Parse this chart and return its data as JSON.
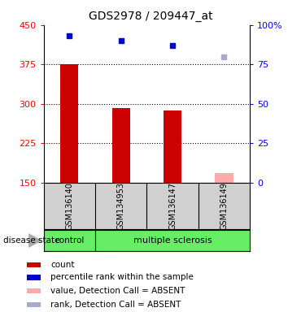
{
  "title": "GDS2978 / 209447_at",
  "samples": [
    "GSM136140",
    "GSM134953",
    "GSM136147",
    "GSM136149"
  ],
  "bar_values": [
    375,
    292,
    287,
    null
  ],
  "bar_values_absent": [
    null,
    null,
    null,
    168
  ],
  "rank_right": [
    93,
    90,
    87,
    null
  ],
  "rank_right_absent": [
    null,
    null,
    null,
    80
  ],
  "bar_color": "#cc0000",
  "bar_absent_color": "#ffaaaa",
  "rank_color": "#0000cc",
  "rank_absent_color": "#aaaacc",
  "ylim_left": [
    150,
    450
  ],
  "ylim_right": [
    0,
    100
  ],
  "yticks_left": [
    150,
    225,
    300,
    375,
    450
  ],
  "yticks_right": [
    0,
    25,
    50,
    75,
    100
  ],
  "ytick_labels_right": [
    "0",
    "25",
    "50",
    "75",
    "100%"
  ],
  "legend_items": [
    {
      "label": "count",
      "color": "#cc0000"
    },
    {
      "label": "percentile rank within the sample",
      "color": "#0000cc"
    },
    {
      "label": "value, Detection Call = ABSENT",
      "color": "#ffaaaa"
    },
    {
      "label": "rank, Detection Call = ABSENT",
      "color": "#aaaacc"
    }
  ],
  "bar_width": 0.35,
  "background_color": "#ffffff",
  "grid_color": "#000000",
  "label_bg": "#d0d0d0",
  "group_bg": "#66ee66"
}
